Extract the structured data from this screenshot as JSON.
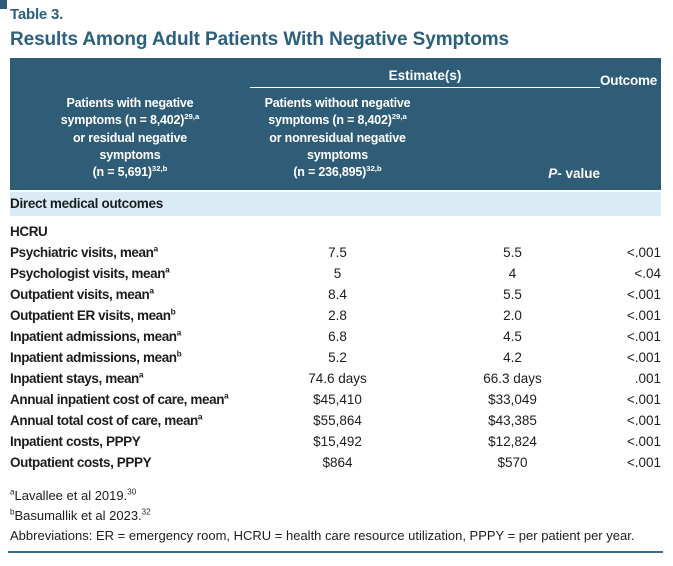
{
  "table": {
    "label": "Table 3.",
    "title": "Results Among Adult Patients With Negative Symptoms",
    "header": {
      "estimates": "Estimate(s)",
      "outcome": "Outcome",
      "group1": "Patients with negative\nsymptoms (n = 8,402)^{29,a}\nor residual negative\nsymptoms\n(n = 5,691)^{32,b}",
      "group2": "Patients without negative\nsymptoms (n = 8,402)^{29,a}\nor nonresidual negative\nsymptoms\n(n = 236,895)^{32,b}",
      "p_value": "*P*- value"
    },
    "section": "Direct medical outcomes",
    "rows": [
      {
        "label": "HCRU",
        "v1": "",
        "v2": "",
        "p": ""
      },
      {
        "label": "Psychiatric visits, mean^{a}",
        "v1": "7.5",
        "v2": "5.5",
        "p": "<.001"
      },
      {
        "label": "Psychologist visits, mean^{a}",
        "v1": "5",
        "v2": "4",
        "p": "<.04"
      },
      {
        "label": "Outpatient visits, mean^{a}",
        "v1": "8.4",
        "v2": "5.5",
        "p": "<.001"
      },
      {
        "label": "Outpatient ER visits, mean^{b}",
        "v1": "2.8",
        "v2": "2.0",
        "p": "<.001"
      },
      {
        "label": "Inpatient admissions, mean^{a}",
        "v1": "6.8",
        "v2": "4.5",
        "p": "<.001"
      },
      {
        "label": "Inpatient admissions, mean^{b}",
        "v1": "5.2",
        "v2": "4.2",
        "p": "<.001"
      },
      {
        "label": "Inpatient stays, mean^{a}",
        "v1": "74.6 days",
        "v2": "66.3 days",
        "p": ".001"
      },
      {
        "label": "Annual inpatient cost of care, mean^{a}",
        "v1": "$45,410",
        "v2": "$33,049",
        "p": "<.001"
      },
      {
        "label": "Annual total cost of care, mean^{a}",
        "v1": "$55,864",
        "v2": "$43,385",
        "p": "<.001"
      },
      {
        "label": "Inpatient costs, PPPY",
        "v1": "$15,492",
        "v2": "$12,824",
        "p": "<.001"
      },
      {
        "label": "Outpatient costs, PPPY",
        "v1": "$864",
        "v2": "$570",
        "p": "<.001"
      }
    ],
    "footnotes": [
      "^{a}Lavallee et al 2019.^{30}",
      "^{b}Basumallik et al 2023.^{32}"
    ],
    "abbreviations": "Abbreviations: ER = emergency room, HCRU = health care resource utilization, PPPY = per patient per year.",
    "colors": {
      "header_bg": "#2f5d77",
      "band_bg": "#d9ecf5",
      "title": "#2b607e",
      "rule": "#2e7191",
      "text": "#1d1d1f"
    }
  }
}
